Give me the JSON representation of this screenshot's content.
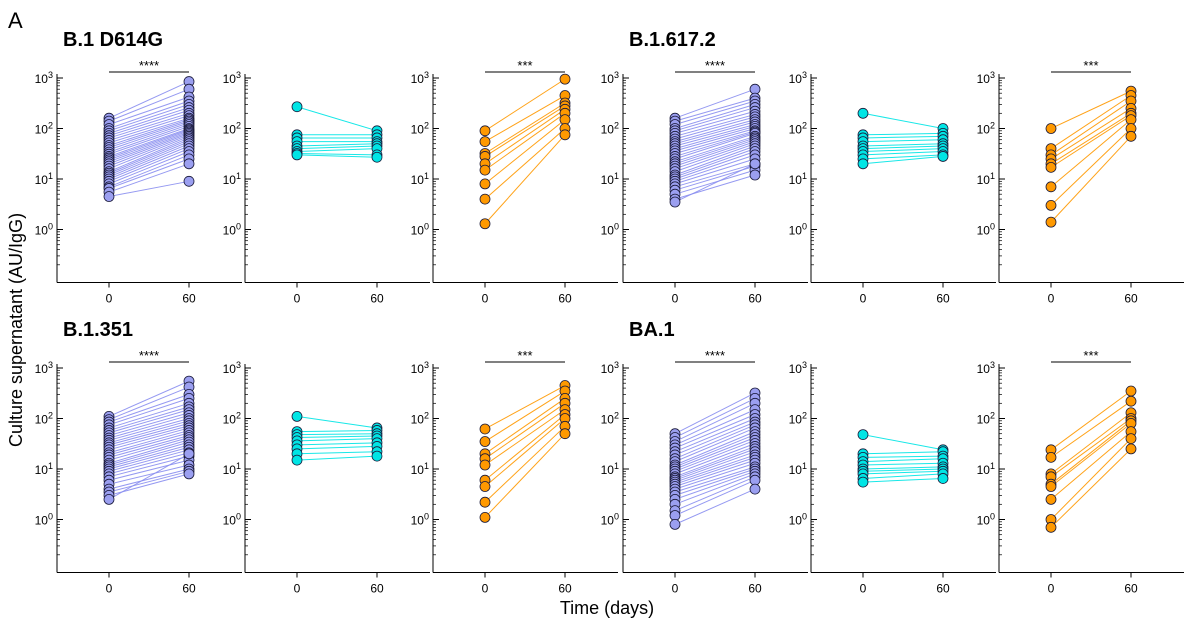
{
  "figure": {
    "panel_letter": "A",
    "ylabel": "Culture supernatant (AU/IgG)",
    "xlabel": "Time (days)"
  },
  "colors": {
    "blue_line": "#8a8ff0",
    "blue_fill": "#9b9ff0",
    "cyan": "#00e5e5",
    "orange": "#ff9900",
    "axis": "#000000"
  },
  "chart_data": [
    {
      "type": "scatter",
      "variant": "B.1 D614G",
      "x_ticks": [
        "0",
        "60"
      ],
      "y_ticks": [
        "10^0",
        "10^1",
        "10^2",
        "10^3"
      ],
      "ylim": [
        0.1,
        1000
      ],
      "yscale": "log",
      "groups": [
        {
          "color": "blue",
          "significance": "****",
          "day0": [
            160,
            140,
            120,
            100,
            90,
            80,
            72,
            65,
            58,
            52,
            46,
            42,
            38,
            34,
            31,
            28,
            26,
            24,
            22,
            20,
            18,
            16,
            14,
            13,
            12,
            11,
            10,
            9,
            8,
            7,
            6.5,
            5.5,
            4.5
          ],
          "day60": [
            850,
            600,
            420,
            350,
            300,
            260,
            230,
            200,
            180,
            160,
            150,
            140,
            130,
            120,
            110,
            100,
            95,
            90,
            85,
            80,
            75,
            70,
            65,
            60,
            55,
            50,
            45,
            40,
            35,
            30,
            25,
            20,
            9
          ]
        },
        {
          "color": "cyan",
          "significance": "",
          "day0": [
            270,
            75,
            65,
            55,
            45,
            40,
            35,
            32,
            30
          ],
          "day60": [
            90,
            75,
            65,
            55,
            50,
            45,
            40,
            30,
            27
          ]
        },
        {
          "color": "orange",
          "significance": "***",
          "day0": [
            90,
            55,
            32,
            28,
            20,
            15,
            8,
            4,
            1.3
          ],
          "day60": [
            950,
            450,
            320,
            280,
            240,
            200,
            150,
            100,
            75
          ]
        }
      ]
    },
    {
      "type": "scatter",
      "variant": "B.1.617.2",
      "x_ticks": [
        "0",
        "60"
      ],
      "y_ticks": [
        "10^0",
        "10^1",
        "10^2",
        "10^3"
      ],
      "ylim": [
        0.1,
        1000
      ],
      "yscale": "log",
      "groups": [
        {
          "color": "blue",
          "significance": "****",
          "day0": [
            160,
            140,
            120,
            100,
            90,
            80,
            70,
            62,
            55,
            50,
            45,
            40,
            36,
            32,
            28,
            25,
            22,
            20,
            18,
            16,
            14,
            12,
            11,
            10,
            9,
            8,
            7,
            6,
            5,
            4,
            3.5
          ],
          "day60": [
            600,
            400,
            350,
            300,
            260,
            220,
            190,
            170,
            150,
            135,
            120,
            110,
            100,
            90,
            85,
            80,
            70,
            65,
            60,
            55,
            50,
            45,
            40,
            35,
            30,
            25,
            20,
            18,
            15,
            12,
            20
          ]
        },
        {
          "color": "cyan",
          "significance": "",
          "day0": [
            200,
            75,
            65,
            55,
            45,
            40,
            35,
            30,
            25,
            20
          ],
          "day60": [
            100,
            80,
            70,
            60,
            50,
            45,
            40,
            35,
            30,
            28
          ]
        },
        {
          "color": "orange",
          "significance": "***",
          "day0": [
            100,
            40,
            30,
            25,
            20,
            17,
            7,
            3,
            1.4
          ],
          "day60": [
            550,
            450,
            350,
            250,
            200,
            180,
            150,
            100,
            70
          ]
        }
      ]
    },
    {
      "type": "scatter",
      "variant": "B.1.351",
      "x_ticks": [
        "0",
        "60"
      ],
      "y_ticks": [
        "10^0",
        "10^1",
        "10^2",
        "10^3"
      ],
      "ylim": [
        0.1,
        1000
      ],
      "yscale": "log",
      "groups": [
        {
          "color": "blue",
          "significance": "****",
          "day0": [
            110,
            95,
            85,
            75,
            65,
            58,
            52,
            46,
            41,
            37,
            33,
            30,
            27,
            24,
            21,
            19,
            17,
            15,
            13,
            12,
            11,
            10,
            9,
            8,
            7,
            6,
            5,
            4,
            3.5,
            3,
            2.5
          ],
          "day60": [
            550,
            420,
            300,
            250,
            200,
            170,
            150,
            130,
            115,
            100,
            90,
            80,
            72,
            65,
            58,
            52,
            46,
            42,
            38,
            34,
            30,
            27,
            24,
            21,
            18,
            15,
            12,
            10,
            9,
            8,
            20
          ]
        },
        {
          "color": "cyan",
          "significance": "",
          "day0": [
            110,
            55,
            48,
            42,
            36,
            30,
            25,
            20,
            15
          ],
          "day60": [
            65,
            58,
            50,
            45,
            40,
            33,
            28,
            22,
            18
          ]
        },
        {
          "color": "orange",
          "significance": "***",
          "day0": [
            62,
            35,
            20,
            16,
            12,
            6,
            4.5,
            2.2,
            1.1
          ],
          "day60": [
            450,
            350,
            250,
            200,
            150,
            120,
            100,
            70,
            50
          ]
        }
      ]
    },
    {
      "type": "scatter",
      "variant": "BA.1",
      "x_ticks": [
        "0",
        "60"
      ],
      "y_ticks": [
        "10^0",
        "10^1",
        "10^2",
        "10^3"
      ],
      "ylim": [
        0.1,
        1000
      ],
      "yscale": "log",
      "groups": [
        {
          "color": "blue",
          "significance": "****",
          "day0": [
            50,
            42,
            35,
            30,
            26,
            22,
            19,
            16,
            14,
            12,
            11,
            10,
            9,
            8,
            7,
            6.5,
            6,
            5.5,
            5,
            4.5,
            4,
            3.5,
            3,
            2.5,
            2,
            1.5,
            1.2,
            0.8
          ],
          "day60": [
            320,
            250,
            200,
            150,
            120,
            100,
            85,
            75,
            65,
            55,
            48,
            42,
            37,
            32,
            28,
            25,
            22,
            19,
            17,
            15,
            13,
            11,
            10,
            9,
            8,
            7,
            6,
            4
          ]
        },
        {
          "color": "cyan",
          "significance": "",
          "day0": [
            48,
            20,
            17,
            14,
            12,
            10,
            9,
            8,
            6.5,
            5.5
          ],
          "day60": [
            24,
            22,
            18,
            16,
            13,
            11,
            10,
            9,
            8,
            6.5
          ]
        },
        {
          "color": "orange",
          "significance": "***",
          "day0": [
            24,
            17,
            8,
            7,
            5,
            4.5,
            2.5,
            1,
            0.7
          ],
          "day60": [
            350,
            220,
            130,
            100,
            90,
            80,
            55,
            40,
            25
          ]
        }
      ]
    }
  ]
}
